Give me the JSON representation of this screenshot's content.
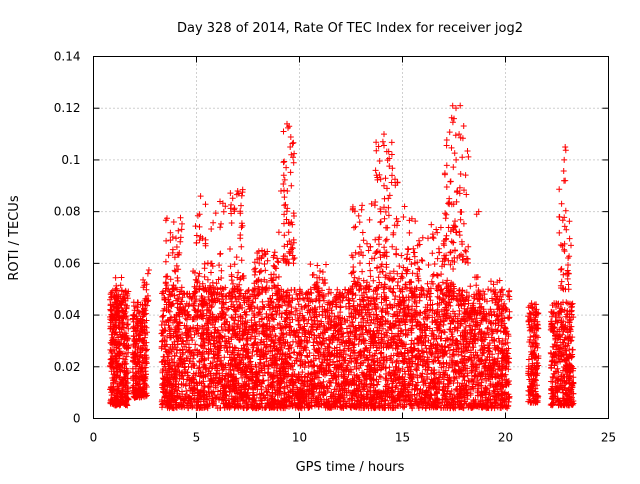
{
  "chart_data": {
    "type": "scatter",
    "title": "Day 328 of 2014, Rate Of TEC Index for receiver jog2",
    "xlabel": "GPS time / hours",
    "ylabel": "ROTI / TECUs",
    "xlim": [
      0,
      25
    ],
    "ylim": [
      0,
      0.14
    ],
    "grid": true,
    "marker": "plus",
    "series_color": "#ff0000",
    "x_ticks": [
      0,
      5,
      10,
      15,
      20,
      25
    ],
    "x_tick_labels": [
      "0",
      "5",
      "10",
      "15",
      "20",
      "25"
    ],
    "y_ticks": [
      0,
      0.02,
      0.04,
      0.06,
      0.08,
      0.1,
      0.12,
      0.14
    ],
    "y_tick_labels": [
      "0",
      "0.02",
      "0.04",
      "0.06",
      "0.08",
      "0.1",
      "0.12",
      "0.14"
    ],
    "data_summary": "Dense cloud of ROTI samples; bulk between 0.005 and 0.05 TECU/min across 0.8–23.3 h, gap 20.2–21.1 h, sparse outliers to ~0.12",
    "clusters": [
      {
        "x": [
          0.8,
          1.7
        ],
        "y": [
          0.005,
          0.05
        ],
        "n": 420
      },
      {
        "x": [
          1.9,
          2.6
        ],
        "y": [
          0.008,
          0.045
        ],
        "n": 300
      },
      {
        "x": [
          3.3,
          20.2
        ],
        "y": [
          0.004,
          0.05
        ],
        "n": 5200
      },
      {
        "x": [
          21.1,
          21.6
        ],
        "y": [
          0.006,
          0.045
        ],
        "n": 180
      },
      {
        "x": [
          22.2,
          23.3
        ],
        "y": [
          0.005,
          0.045
        ],
        "n": 380
      }
    ],
    "highlights": [
      {
        "x": [
          1.0,
          1.5
        ],
        "y": [
          0.035,
          0.055
        ],
        "n": 30
      },
      {
        "x": [
          2.4,
          2.7
        ],
        "y": [
          0.045,
          0.06
        ],
        "n": 15
      },
      {
        "x": [
          3.5,
          4.3
        ],
        "y": [
          0.05,
          0.078
        ],
        "n": 45
      },
      {
        "x": [
          4.8,
          6.4
        ],
        "y": [
          0.05,
          0.086
        ],
        "n": 65
      },
      {
        "x": [
          6.6,
          7.3
        ],
        "y": [
          0.05,
          0.089
        ],
        "n": 45
      },
      {
        "x": [
          7.8,
          9.0
        ],
        "y": [
          0.05,
          0.065
        ],
        "n": 65
      },
      {
        "x": [
          9.2,
          9.8
        ],
        "y": [
          0.06,
          0.114
        ],
        "n": 60
      },
      {
        "x": [
          10.5,
          11.3
        ],
        "y": [
          0.05,
          0.06
        ],
        "n": 25
      },
      {
        "x": [
          12.5,
          13.6
        ],
        "y": [
          0.05,
          0.083
        ],
        "n": 60
      },
      {
        "x": [
          13.6,
          14.8
        ],
        "y": [
          0.05,
          0.11
        ],
        "n": 110
      },
      {
        "x": [
          14.8,
          16.0
        ],
        "y": [
          0.05,
          0.08
        ],
        "n": 60
      },
      {
        "x": [
          16.2,
          17.6
        ],
        "y": [
          0.05,
          0.075
        ],
        "n": 60
      },
      {
        "x": [
          17.0,
          18.2
        ],
        "y": [
          0.06,
          0.121
        ],
        "n": 80
      },
      {
        "x": [
          18.2,
          20.0
        ],
        "y": [
          0.04,
          0.055
        ],
        "n": 40
      },
      {
        "x": [
          22.6,
          23.2
        ],
        "y": [
          0.05,
          0.105
        ],
        "n": 40
      }
    ],
    "outliers": [
      {
        "x": 17.8,
        "y": 0.121
      },
      {
        "x": 17.5,
        "y": 0.116
      },
      {
        "x": 9.5,
        "y": 0.113
      },
      {
        "x": 14.1,
        "y": 0.11
      },
      {
        "x": 14.05,
        "y": 0.107
      },
      {
        "x": 17.75,
        "y": 0.11
      },
      {
        "x": 22.9,
        "y": 0.105
      },
      {
        "x": 9.55,
        "y": 0.105
      },
      {
        "x": 9.6,
        "y": 0.102
      },
      {
        "x": 22.85,
        "y": 0.1
      },
      {
        "x": 17.6,
        "y": 0.1
      },
      {
        "x": 17.9,
        "y": 0.101
      },
      {
        "x": 22.9,
        "y": 0.092
      },
      {
        "x": 9.6,
        "y": 0.09
      },
      {
        "x": 14.1,
        "y": 0.09
      },
      {
        "x": 17.65,
        "y": 0.088
      },
      {
        "x": 9.1,
        "y": 0.088
      },
      {
        "x": 7.0,
        "y": 0.088
      },
      {
        "x": 7.05,
        "y": 0.087
      },
      {
        "x": 5.2,
        "y": 0.086
      },
      {
        "x": 13.5,
        "y": 0.083
      },
      {
        "x": 15.1,
        "y": 0.082
      },
      {
        "x": 18.7,
        "y": 0.08
      },
      {
        "x": 18.6,
        "y": 0.079
      },
      {
        "x": 5.15,
        "y": 0.079
      },
      {
        "x": 3.9,
        "y": 0.076
      },
      {
        "x": 22.95,
        "y": 0.073
      },
      {
        "x": 16.4,
        "y": 0.075
      },
      {
        "x": 9.0,
        "y": 0.072
      }
    ]
  }
}
